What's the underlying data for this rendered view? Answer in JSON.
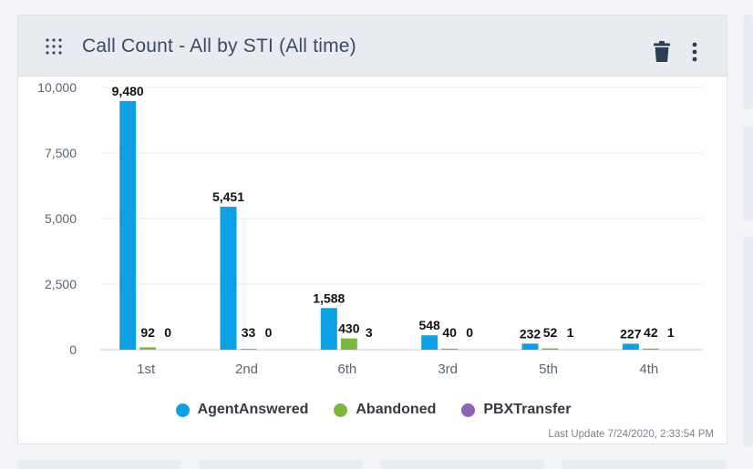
{
  "widget": {
    "title": "Call Count - All by STI (All time)",
    "last_update": "Last Update 7/24/2020, 2:33:54 PM",
    "icons": {
      "drag": "grid-drag-icon",
      "delete": "trash-icon",
      "menu": "more-vertical-icon"
    }
  },
  "colors": {
    "AgentAnswered": "#0ea0e4",
    "Abandoned": "#7cb83e",
    "PBXTransfer": "#8e63b8",
    "axis_text": "#5b6470",
    "grid": "#e6e9ee",
    "label_text": "#111111"
  },
  "chart_data": {
    "type": "bar",
    "categories": [
      "1st",
      "2nd",
      "6th",
      "3rd",
      "5th",
      "4th"
    ],
    "series": [
      {
        "name": "AgentAnswered",
        "values": [
          9480,
          5451,
          1588,
          548,
          232,
          227
        ]
      },
      {
        "name": "Abandoned",
        "values": [
          92,
          33,
          430,
          40,
          52,
          42
        ]
      },
      {
        "name": "PBXTransfer",
        "values": [
          0,
          0,
          3,
          0,
          1,
          1
        ]
      }
    ],
    "ylim": [
      0,
      10000
    ],
    "yticks": [
      0,
      2500,
      5000,
      7500,
      10000
    ],
    "ytick_labels": [
      "0",
      "2,500",
      "5,000",
      "7,500",
      "10,000"
    ],
    "data_labels": [
      [
        "9,480",
        "5,451",
        "1,588",
        "548",
        "232",
        "227"
      ],
      [
        "92",
        "33",
        "430",
        "40",
        "52",
        "42"
      ],
      [
        "0",
        "0",
        "3",
        "0",
        "1",
        "1"
      ]
    ],
    "grid": true,
    "legend_position": "bottom"
  }
}
